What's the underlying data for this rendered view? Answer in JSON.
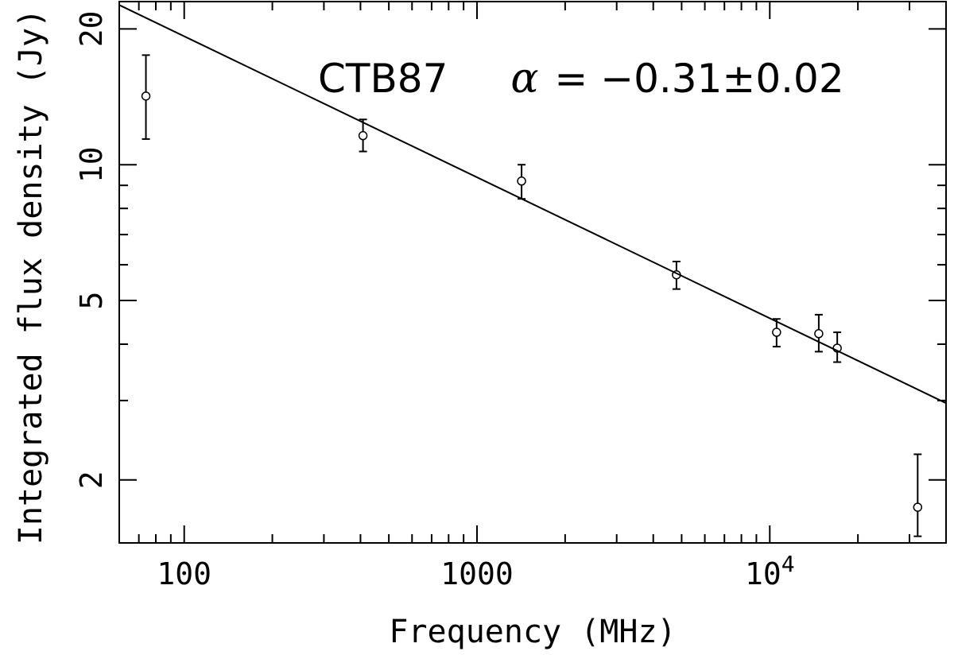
{
  "chart_data": {
    "type": "scatter",
    "scale": {
      "x": "log",
      "y": "log"
    },
    "xlabel": "Frequency (MHz)",
    "ylabel": "Integrated flux density (Jy)",
    "xlim": [
      60,
      40000
    ],
    "ylim": [
      1.45,
      23
    ],
    "x_ticks": [
      {
        "value": 100,
        "label": "100"
      },
      {
        "value": 1000,
        "label": "1000"
      },
      {
        "value": 10000,
        "label": "10",
        "sup": "4"
      }
    ],
    "y_ticks": [
      {
        "value": 2,
        "label": "2"
      },
      {
        "value": 5,
        "label": "5"
      },
      {
        "value": 10,
        "label": "10"
      },
      {
        "value": 20,
        "label": "20"
      }
    ],
    "annotation": {
      "source": "CTB87",
      "alpha_symbol": "α",
      "alpha_text": " = −0.31±0.02"
    },
    "fit_line": {
      "x": [
        60,
        40000
      ],
      "y": [
        22.6,
        2.96
      ]
    },
    "points": [
      {
        "x": 74,
        "y": 14.2,
        "y_low": 11.4,
        "y_high": 17.5
      },
      {
        "x": 408,
        "y": 11.6,
        "y_low": 10.7,
        "y_high": 12.6
      },
      {
        "x": 1420,
        "y": 9.2,
        "y_low": 8.4,
        "y_high": 10.0
      },
      {
        "x": 4800,
        "y": 5.7,
        "y_low": 5.3,
        "y_high": 6.1
      },
      {
        "x": 10550,
        "y": 4.25,
        "y_low": 3.95,
        "y_high": 4.55
      },
      {
        "x": 14700,
        "y": 4.22,
        "y_low": 3.85,
        "y_high": 4.65
      },
      {
        "x": 17000,
        "y": 3.92,
        "y_low": 3.65,
        "y_high": 4.25
      },
      {
        "x": 32000,
        "y": 1.74,
        "y_low": 1.5,
        "y_high": 2.28
      }
    ],
    "colors": {
      "ink": "#000000",
      "background": "#ffffff"
    }
  }
}
